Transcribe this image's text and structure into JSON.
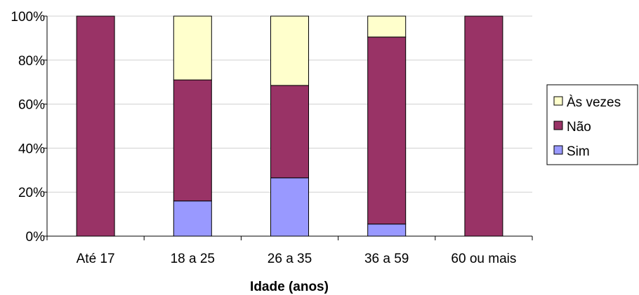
{
  "chart_data": {
    "type": "bar",
    "stacked": true,
    "percent_stacked": true,
    "title": "",
    "xlabel": "Idade (anos)",
    "ylabel": "",
    "ylim": [
      0,
      100
    ],
    "y_ticks": [
      "0%",
      "20%",
      "40%",
      "60%",
      "80%",
      "100%"
    ],
    "categories": [
      "Até 17",
      "18 a 25",
      "26 a 35",
      "36 a 59",
      "60 ou mais"
    ],
    "series": [
      {
        "name": "Sim",
        "color": "#9999ff",
        "values": [
          0,
          16,
          26.5,
          5.5,
          0
        ]
      },
      {
        "name": "Não",
        "color": "#993366",
        "values": [
          100,
          55,
          42,
          85,
          100
        ]
      },
      {
        "name": "Às vezes",
        "color": "#ffffcc",
        "values": [
          0,
          29,
          31.5,
          9.5,
          0
        ]
      }
    ],
    "legend_order": [
      "Às vezes",
      "Não",
      "Sim"
    ],
    "legend_position": "right",
    "grid": true
  }
}
